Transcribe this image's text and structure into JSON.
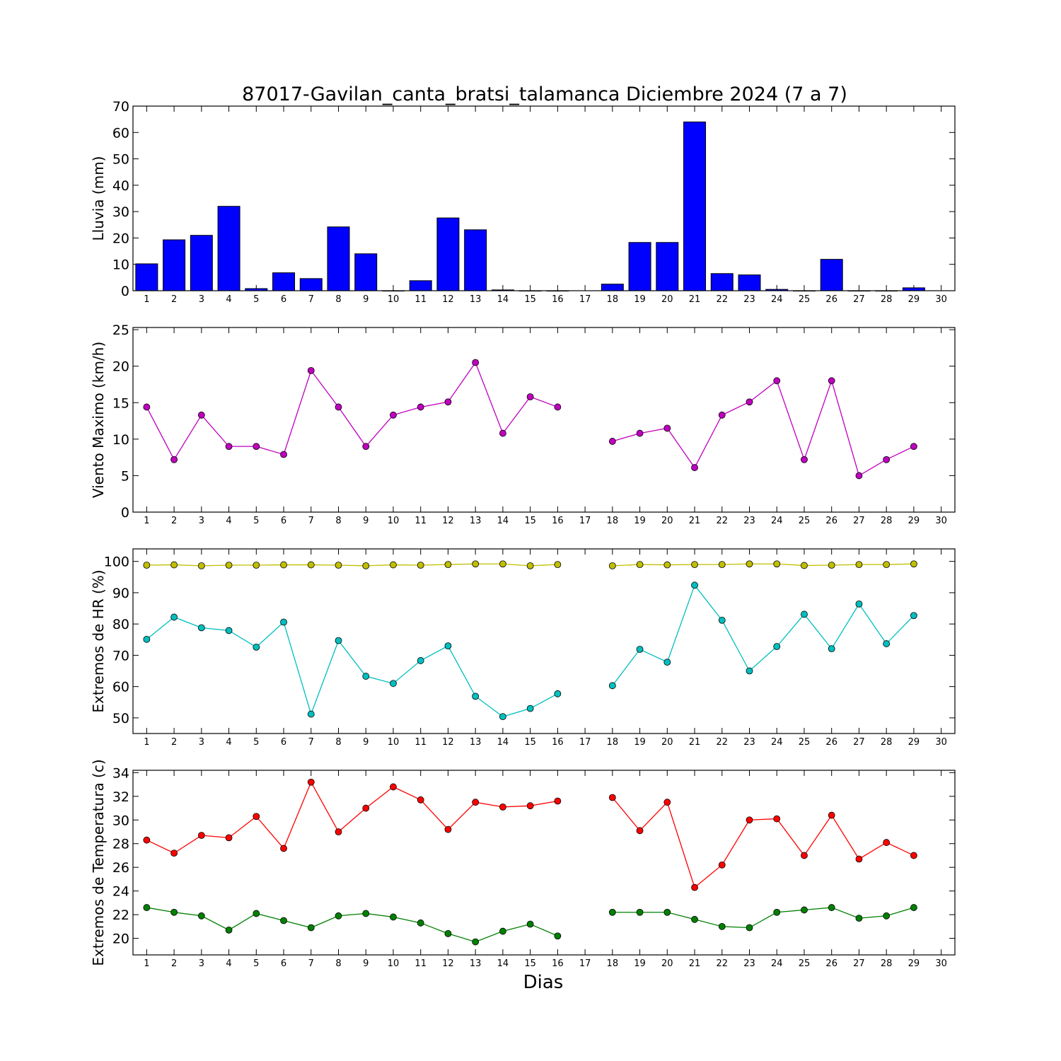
{
  "title": "87017-Gavilan_canta_bratsi_talamanca Diciembre 2024  (7 a 7)",
  "xlabel": "Dias",
  "chart_data": [
    {
      "id": "rain",
      "type": "bar",
      "ylabel": "Lluvia (mm)",
      "ylim": [
        0,
        70
      ],
      "yticks": [
        0,
        10,
        20,
        30,
        40,
        50,
        60,
        70
      ],
      "xlim": [
        0.5,
        30.5
      ],
      "xticks": [
        1,
        2,
        3,
        4,
        5,
        6,
        7,
        8,
        9,
        10,
        11,
        12,
        13,
        14,
        15,
        16,
        17,
        18,
        19,
        20,
        21,
        22,
        23,
        24,
        25,
        26,
        27,
        28,
        29,
        30
      ],
      "color": "#0000ff",
      "x": [
        1,
        2,
        3,
        4,
        5,
        6,
        7,
        8,
        9,
        10,
        11,
        12,
        13,
        14,
        15,
        16,
        17,
        18,
        19,
        20,
        21,
        22,
        23,
        24,
        25,
        26,
        27,
        28,
        29
      ],
      "values": [
        10.2,
        19.3,
        21.0,
        32.0,
        0.8,
        6.8,
        4.6,
        24.2,
        14.0,
        0.0,
        3.8,
        27.6,
        23.1,
        0.3,
        0.0,
        0.0,
        null,
        2.5,
        18.3,
        18.3,
        64.0,
        6.5,
        6.0,
        0.5,
        0.0,
        11.9,
        0.0,
        0.0,
        1.1
      ]
    },
    {
      "id": "wind",
      "type": "line",
      "ylabel": "Viento Maximo (km/h)",
      "ylim": [
        0,
        25.3
      ],
      "yticks": [
        0,
        5,
        10,
        15,
        20,
        25
      ],
      "xlim": [
        0.5,
        30.5
      ],
      "xticks": [
        1,
        2,
        3,
        4,
        5,
        6,
        7,
        8,
        9,
        10,
        11,
        12,
        13,
        14,
        15,
        16,
        17,
        18,
        19,
        20,
        21,
        22,
        23,
        24,
        25,
        26,
        27,
        28,
        29,
        30
      ],
      "x": [
        1,
        2,
        3,
        4,
        5,
        6,
        7,
        8,
        9,
        10,
        11,
        12,
        13,
        14,
        15,
        16,
        17,
        18,
        19,
        20,
        21,
        22,
        23,
        24,
        25,
        26,
        27,
        28,
        29
      ],
      "series": [
        {
          "color": "#bf00bf",
          "values": [
            14.4,
            7.2,
            13.3,
            9.0,
            9.0,
            7.9,
            19.4,
            14.4,
            9.0,
            13.3,
            14.4,
            15.1,
            20.5,
            10.8,
            15.8,
            14.4,
            null,
            9.7,
            10.8,
            11.5,
            6.1,
            13.3,
            15.1,
            18.0,
            7.2,
            18.0,
            5.0,
            7.2,
            9.0
          ]
        }
      ]
    },
    {
      "id": "rh",
      "type": "line",
      "ylabel": "Extremos de HR (%)",
      "ylim": [
        45,
        104
      ],
      "yticks": [
        50,
        60,
        70,
        80,
        90,
        100
      ],
      "xlim": [
        0.5,
        30.5
      ],
      "xticks": [
        1,
        2,
        3,
        4,
        5,
        6,
        7,
        8,
        9,
        10,
        11,
        12,
        13,
        14,
        15,
        16,
        17,
        18,
        19,
        20,
        21,
        22,
        23,
        24,
        25,
        26,
        27,
        28,
        29,
        30
      ],
      "x": [
        1,
        2,
        3,
        4,
        5,
        6,
        7,
        8,
        9,
        10,
        11,
        12,
        13,
        14,
        15,
        16,
        17,
        18,
        19,
        20,
        21,
        22,
        23,
        24,
        25,
        26,
        27,
        28,
        29
      ],
      "series": [
        {
          "color": "#bfbf00",
          "values": [
            98.8,
            98.9,
            98.6,
            98.8,
            98.8,
            98.9,
            98.9,
            98.8,
            98.6,
            98.9,
            98.8,
            99.0,
            99.2,
            99.2,
            98.6,
            99.0,
            null,
            98.6,
            99.0,
            98.9,
            99.0,
            99.0,
            99.2,
            99.2,
            98.7,
            98.8,
            99.0,
            99.0,
            99.2
          ]
        },
        {
          "color": "#00bfbf",
          "values": [
            75.1,
            82.2,
            78.8,
            77.9,
            72.6,
            80.6,
            51.2,
            74.7,
            63.3,
            61.0,
            68.3,
            73.0,
            56.9,
            50.4,
            53.0,
            57.7,
            null,
            60.3,
            71.9,
            67.8,
            92.4,
            81.2,
            65.0,
            72.8,
            83.1,
            72.1,
            86.4,
            73.7,
            82.7
          ]
        }
      ]
    },
    {
      "id": "temp",
      "type": "line",
      "ylabel": "Extremos de Temperatura (c)",
      "ylim": [
        18.6,
        34.2
      ],
      "yticks": [
        20,
        22,
        24,
        26,
        28,
        30,
        32,
        34
      ],
      "xlim": [
        0.5,
        30.5
      ],
      "xticks": [
        1,
        2,
        3,
        4,
        5,
        6,
        7,
        8,
        9,
        10,
        11,
        12,
        13,
        14,
        15,
        16,
        17,
        18,
        19,
        20,
        21,
        22,
        23,
        24,
        25,
        26,
        27,
        28,
        29,
        30
      ],
      "x": [
        1,
        2,
        3,
        4,
        5,
        6,
        7,
        8,
        9,
        10,
        11,
        12,
        13,
        14,
        15,
        16,
        17,
        18,
        19,
        20,
        21,
        22,
        23,
        24,
        25,
        26,
        27,
        28,
        29
      ],
      "series": [
        {
          "color": "#ff0000",
          "values": [
            28.3,
            27.2,
            28.7,
            28.5,
            30.3,
            27.6,
            33.2,
            29.0,
            31.0,
            32.8,
            31.7,
            29.2,
            31.5,
            31.1,
            31.2,
            31.6,
            null,
            31.9,
            29.1,
            31.5,
            24.3,
            26.2,
            30.0,
            30.1,
            27.0,
            30.4,
            26.7,
            28.1,
            27.0
          ]
        },
        {
          "color": "#008000",
          "values": [
            22.6,
            22.2,
            21.9,
            20.7,
            22.1,
            21.5,
            20.9,
            21.9,
            22.1,
            21.8,
            21.3,
            20.4,
            19.7,
            20.6,
            21.2,
            20.2,
            null,
            22.2,
            22.2,
            22.2,
            21.6,
            21.0,
            20.9,
            22.2,
            22.4,
            22.6,
            21.7,
            21.9,
            22.6
          ]
        }
      ]
    }
  ]
}
